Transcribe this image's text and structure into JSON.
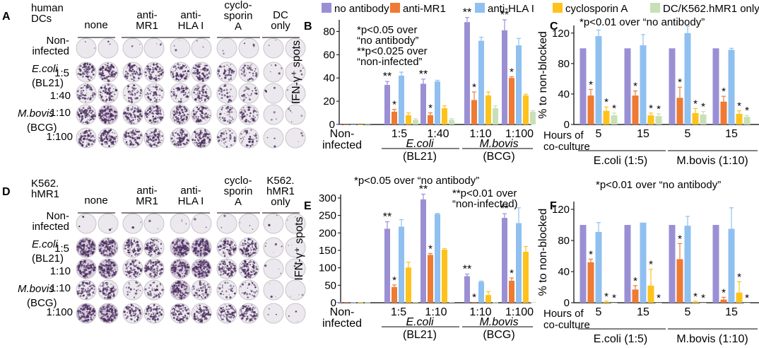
{
  "colors": {
    "no_antibody": "#9B8FD4",
    "anti_mr1": "#EE7A34",
    "anti_hla": "#8FC0F0",
    "cyclosporin": "#FFC21C",
    "control": "#C8E0B8",
    "well_bg": "#ECEAEE",
    "spot": "#4A2E5E"
  },
  "legend": [
    "no antibody",
    "anti-MR1",
    "anti-HLA I",
    "cyclosporin A",
    "DC/K562.hMR1 only"
  ],
  "panels": {
    "A": {
      "letter": "A",
      "corner": [
        "human",
        "DCs"
      ],
      "headers": [
        [
          "none"
        ],
        [
          "anti-",
          "MR1"
        ],
        [
          "anti-",
          "HLA I"
        ],
        [
          "cyclo-",
          "sporin",
          "A"
        ],
        [
          "DC",
          "only"
        ]
      ],
      "rows": [
        [
          "Non-",
          "infected"
        ],
        [
          "E.coli",
          "1:5"
        ],
        [
          "(BL21)",
          "1:40"
        ],
        [
          "M.bovis",
          "1:10"
        ],
        [
          "(BCG)",
          "1:100"
        ]
      ],
      "well_density": [
        [
          0.01,
          0.01,
          0.01,
          0.02,
          0.02,
          0.01,
          0.01,
          0.02,
          0.01,
          0.01
        ],
        [
          0.55,
          0.6,
          0.45,
          0.5,
          0.5,
          0.5,
          0.3,
          0.3,
          0.03,
          0.03
        ],
        [
          0.4,
          0.45,
          0.3,
          0.35,
          0.35,
          0.4,
          0.2,
          0.2,
          0.02,
          0.02
        ],
        [
          0.65,
          0.75,
          0.6,
          0.6,
          0.65,
          0.55,
          0.3,
          0.35,
          0.02,
          0.03
        ],
        [
          0.6,
          0.7,
          0.5,
          0.55,
          0.6,
          0.6,
          0.3,
          0.3,
          0.02,
          0.02
        ]
      ]
    },
    "D": {
      "letter": "D",
      "corner": [
        "K562.",
        "hMR1"
      ],
      "headers": [
        [
          "none"
        ],
        [
          "anti-",
          "MR1"
        ],
        [
          "anti-",
          "HLA I"
        ],
        [
          "cyclo-",
          "sporin",
          "A"
        ],
        [
          "K562.",
          "hMR1",
          "only"
        ]
      ],
      "rows": [
        [
          "Non-",
          "infected"
        ],
        [
          "E.coli",
          "1:5"
        ],
        [
          "(BL21)",
          "1:10"
        ],
        [
          "M.bovis",
          "1:10"
        ],
        [
          "(BCG)",
          "1:100"
        ]
      ],
      "well_density": [
        [
          0.01,
          0.01,
          0.02,
          0.01,
          0.02,
          0.01,
          0.01,
          0.02,
          0.01,
          0.01
        ],
        [
          0.85,
          0.9,
          0.5,
          0.6,
          0.85,
          0.85,
          0.6,
          0.6,
          0.03,
          0.02
        ],
        [
          0.75,
          0.85,
          0.5,
          0.55,
          0.8,
          0.85,
          0.55,
          0.6,
          0.02,
          0.02
        ],
        [
          0.45,
          0.55,
          0.15,
          0.25,
          0.85,
          0.4,
          0.2,
          0.2,
          0.02,
          0.02
        ],
        [
          0.8,
          0.85,
          0.45,
          0.5,
          0.6,
          0.7,
          0.55,
          0.6,
          0.02,
          0.02
        ]
      ]
    }
  },
  "chart_data": [
    {
      "id": "B",
      "type": "bar",
      "letter": "B",
      "ylabel": "IFN-γ⁺ spots",
      "ylim": [
        0,
        90
      ],
      "yticks": [
        0,
        20,
        40,
        60,
        80
      ],
      "series_names": [
        "no antibody",
        "anti-MR1",
        "anti-HLA I",
        "cyclosporin A",
        "DC/K562.hMR1 only"
      ],
      "groups": [
        {
          "values": [
            0,
            0,
            0,
            0,
            1
          ],
          "errors": [
            0,
            0,
            0,
            0,
            0
          ]
        },
        {
          "values": [
            34,
            11,
            42,
            8,
            4
          ],
          "errors": [
            3,
            2,
            3,
            2,
            1
          ]
        },
        {
          "values": [
            35,
            8,
            37,
            14,
            4
          ],
          "errors": [
            4,
            2,
            1,
            2,
            1
          ]
        },
        {
          "values": [
            88,
            21,
            72,
            25,
            14
          ],
          "errors": [
            4,
            7,
            3,
            3,
            2
          ]
        },
        {
          "values": [
            81,
            40,
            68,
            25,
            11
          ],
          "errors": [
            9,
            1,
            6,
            1,
            1
          ]
        }
      ],
      "sig": [
        [
          "",
          "",
          "",
          "",
          ""
        ],
        [
          "**",
          "*",
          "",
          "",
          ""
        ],
        [
          "**",
          "*",
          "",
          "",
          ""
        ],
        [
          "**",
          "*",
          "",
          "",
          ""
        ],
        [
          "**",
          "*",
          "",
          "",
          ""
        ]
      ],
      "xlabels": [
        [
          "Non-",
          "infected"
        ],
        [
          "1:5"
        ],
        [
          "1:40"
        ],
        [
          "1:10"
        ],
        [
          "1:100"
        ]
      ],
      "pathogens": [
        [
          "E.coli",
          "(BL21)"
        ],
        [
          "M.bovis",
          "(BCG)"
        ]
      ],
      "annotation": [
        "*p<0.05 over",
        "“no antibody”",
        "**p<0.025 over",
        "“non-infected”"
      ]
    },
    {
      "id": "C",
      "type": "bar",
      "letter": "C",
      "title": "*p<0.01 over “no antibody”",
      "ylabel": "% to non-blocked",
      "ylim": [
        0,
        130
      ],
      "yticks": [
        0,
        40,
        80,
        120
      ],
      "series_names": [
        "no antibody",
        "anti-MR1",
        "anti-HLA I",
        "cyclosporin A",
        "DC/K562.hMR1 only"
      ],
      "groups": [
        {
          "values": [
            100,
            38,
            116,
            18,
            12
          ],
          "errors": [
            0,
            8,
            8,
            5,
            3
          ]
        },
        {
          "values": [
            100,
            38,
            104,
            12,
            11
          ],
          "errors": [
            0,
            6,
            14,
            3,
            3
          ]
        },
        {
          "values": [
            100,
            35,
            120,
            15,
            13
          ],
          "errors": [
            0,
            14,
            9,
            6,
            4
          ]
        },
        {
          "values": [
            100,
            30,
            98,
            14,
            10
          ],
          "errors": [
            0,
            7,
            2,
            4,
            2
          ]
        }
      ],
      "sig": [
        [
          "",
          "*",
          "",
          "*",
          "*"
        ],
        [
          "",
          "*",
          "",
          "*",
          "*"
        ],
        [
          "",
          "*",
          "",
          "*",
          "*"
        ],
        [
          "",
          "*",
          "",
          "*",
          "*"
        ]
      ],
      "xlabels": [
        [
          "5"
        ],
        [
          "15"
        ],
        [
          "5"
        ],
        [
          "15"
        ]
      ],
      "hours_label": [
        "Hours of",
        "co-culture"
      ],
      "pathogens": [
        [
          "E.coli (1:5)"
        ],
        [
          "M.bovis (1:10)"
        ]
      ]
    },
    {
      "id": "E",
      "type": "bar",
      "letter": "E",
      "ylabel": "IFN-γ⁺ spots",
      "ylim": [
        0,
        310
      ],
      "yticks": [
        0,
        50,
        100,
        150,
        200,
        250,
        300
      ],
      "series_names": [
        "no antibody",
        "anti-MR1",
        "anti-HLA I",
        "cyclosporin A",
        "DC/K562.hMR1 only"
      ],
      "groups": [
        {
          "values": [
            2,
            2,
            1,
            1,
            1
          ],
          "errors": [
            0,
            0,
            0,
            0,
            0
          ]
        },
        {
          "values": [
            212,
            45,
            218,
            101,
            2
          ],
          "errors": [
            20,
            6,
            20,
            15,
            0
          ]
        },
        {
          "values": [
            296,
            137,
            254,
            152,
            2
          ],
          "errors": [
            15,
            4,
            2,
            3,
            0
          ]
        },
        {
          "values": [
            76,
            2,
            60,
            22,
            1
          ],
          "errors": [
            6,
            0,
            2,
            10,
            0
          ]
        },
        {
          "values": [
            243,
            63,
            228,
            146,
            2
          ],
          "errors": [
            12,
            8,
            44,
            15,
            0
          ]
        }
      ],
      "sig": [
        [
          "",
          "",
          "",
          "",
          ""
        ],
        [
          "**",
          "*",
          "",
          "",
          ""
        ],
        [
          "**",
          "*",
          "",
          "",
          ""
        ],
        [
          "**",
          "*",
          "",
          "",
          ""
        ],
        [
          "**",
          "*",
          "",
          "",
          ""
        ]
      ],
      "xlabels": [
        [
          "Non-",
          "infected"
        ],
        [
          "1:5"
        ],
        [
          "1:10"
        ],
        [
          "1:10"
        ],
        [
          "1:100"
        ]
      ],
      "pathogens": [
        [
          "E.coli",
          "(BL21)"
        ],
        [
          "M.bovis",
          "(BCG)"
        ]
      ],
      "title": "*p<0.05 over “no antibody”",
      "annotation": [
        "**p<0.01 over",
        "“non-infected)"
      ]
    },
    {
      "id": "F",
      "type": "bar",
      "letter": "F",
      "title": "*p<0.01 over “no antibody”",
      "ylabel": "% to non-blocked",
      "ylim": [
        0,
        130
      ],
      "yticks": [
        0,
        40,
        80,
        120
      ],
      "series_names": [
        "no antibody",
        "anti-MR1",
        "anti-HLA I",
        "cyclosporin A",
        "DC/K562.hMR1 only"
      ],
      "groups": [
        {
          "values": [
            100,
            52,
            91,
            1,
            0
          ],
          "errors": [
            0,
            4,
            12,
            1,
            0
          ]
        },
        {
          "values": [
            100,
            17,
            103,
            22,
            0
          ],
          "errors": [
            0,
            5,
            0,
            21,
            0
          ]
        },
        {
          "values": [
            100,
            56,
            99,
            1,
            0
          ],
          "errors": [
            0,
            20,
            12,
            1,
            0
          ]
        },
        {
          "values": [
            100,
            4,
            95,
            13,
            0
          ],
          "errors": [
            0,
            3,
            27,
            14,
            0
          ]
        }
      ],
      "sig": [
        [
          "",
          "*",
          "",
          "*",
          "*"
        ],
        [
          "",
          "*",
          "",
          "*",
          "*"
        ],
        [
          "",
          "*",
          "",
          "*",
          "*"
        ],
        [
          "",
          "*",
          "",
          "*",
          "*"
        ]
      ],
      "xlabels": [
        [
          "5"
        ],
        [
          "15"
        ],
        [
          "5"
        ],
        [
          "15"
        ]
      ],
      "hours_label": [
        "Hours of",
        "co-culture"
      ],
      "pathogens": [
        [
          "E.coli (1:5)"
        ],
        [
          "M.bovis (1:10)"
        ]
      ]
    }
  ]
}
